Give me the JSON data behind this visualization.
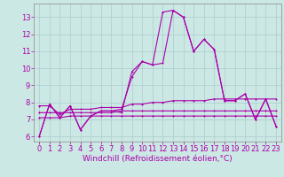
{
  "title": "",
  "xlabel": "Windchill (Refroidissement éolien,°C)",
  "ylabel": "",
  "background_color": "#cce8e4",
  "line_color": "#aa00aa",
  "xlim": [
    -0.5,
    23.5
  ],
  "ylim": [
    5.7,
    13.8
  ],
  "yticks": [
    6,
    7,
    8,
    9,
    10,
    11,
    12,
    13
  ],
  "xticks": [
    0,
    1,
    2,
    3,
    4,
    5,
    6,
    7,
    8,
    9,
    10,
    11,
    12,
    13,
    14,
    15,
    16,
    17,
    18,
    19,
    20,
    21,
    22,
    23
  ],
  "series": [
    [
      6.0,
      7.9,
      7.1,
      7.8,
      6.4,
      7.2,
      7.5,
      7.5,
      7.4,
      9.8,
      10.4,
      10.2,
      13.3,
      13.4,
      13.0,
      11.0,
      11.7,
      11.1,
      8.1,
      8.1,
      8.5,
      7.0,
      8.2,
      6.6
    ],
    [
      6.0,
      7.9,
      7.1,
      7.8,
      6.4,
      7.2,
      7.5,
      7.5,
      7.6,
      9.5,
      10.4,
      10.2,
      10.3,
      13.4,
      13.0,
      11.0,
      11.7,
      11.1,
      8.1,
      8.1,
      8.5,
      7.0,
      8.2,
      6.6
    ],
    [
      7.8,
      7.8,
      7.3,
      7.6,
      7.6,
      7.6,
      7.7,
      7.7,
      7.7,
      7.9,
      7.9,
      8.0,
      8.0,
      8.1,
      8.1,
      8.1,
      8.1,
      8.2,
      8.2,
      8.2,
      8.2,
      8.2,
      8.2,
      8.2
    ],
    [
      7.1,
      7.1,
      7.1,
      7.2,
      7.2,
      7.2,
      7.2,
      7.2,
      7.2,
      7.2,
      7.2,
      7.2,
      7.2,
      7.2,
      7.2,
      7.2,
      7.2,
      7.2,
      7.2,
      7.2,
      7.2,
      7.2,
      7.2,
      7.2
    ],
    [
      7.4,
      7.4,
      7.4,
      7.4,
      7.4,
      7.4,
      7.4,
      7.4,
      7.5,
      7.5,
      7.5,
      7.5,
      7.5,
      7.5,
      7.5,
      7.5,
      7.5,
      7.5,
      7.5,
      7.5,
      7.5,
      7.5,
      7.5,
      7.5
    ]
  ],
  "grid_color": "#aacccc",
  "tick_fontsize": 6.0,
  "xlabel_fontsize": 6.5,
  "linewidth": 0.8,
  "markersize": 2.0
}
